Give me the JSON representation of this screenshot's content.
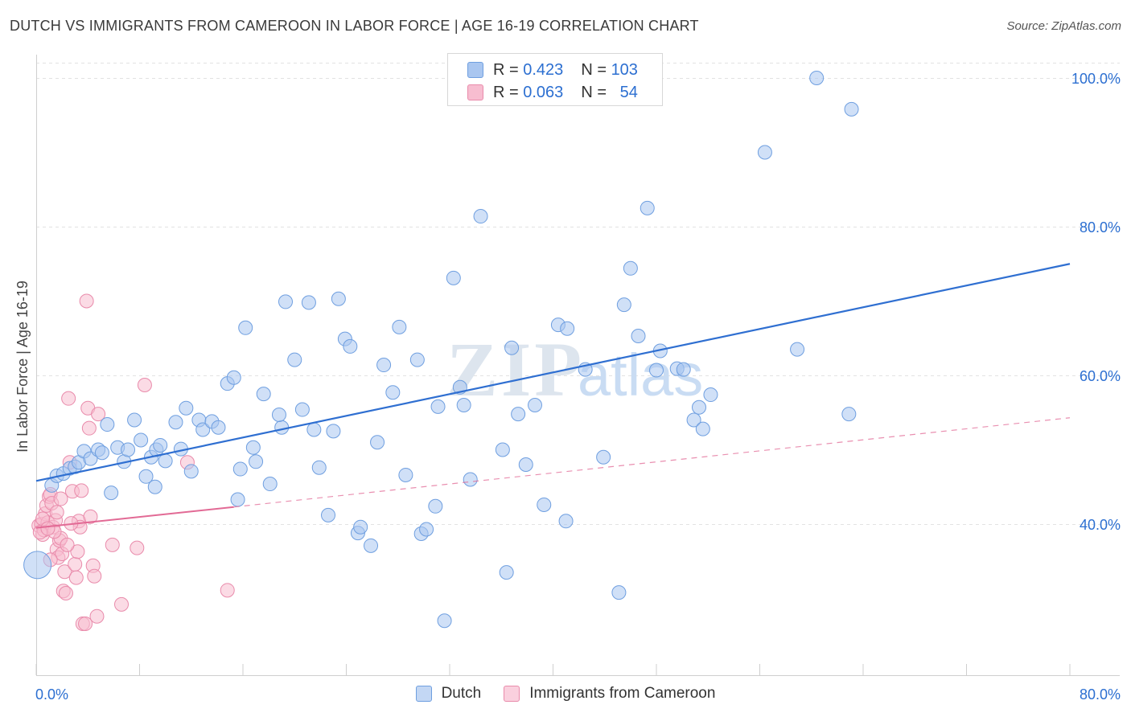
{
  "title": "DUTCH VS IMMIGRANTS FROM CAMEROON IN LABOR FORCE | AGE 16-19 CORRELATION CHART",
  "source": "Source: ZipAtlas.com",
  "watermark": {
    "zip": "ZIP",
    "atlas": "atlas"
  },
  "legend": {
    "r_label": "R =",
    "n_label": "N =",
    "dutch": {
      "r": "0.423",
      "n": "103",
      "color": "#a9c6f0",
      "border": "#6f9fe0"
    },
    "cameroon": {
      "r": "0.063",
      "n": "54",
      "color": "#f7bdd0",
      "border": "#e98bab"
    }
  },
  "bottom_legend": {
    "dutch_label": "Dutch",
    "cameroon_label": "Immigrants from Cameroon"
  },
  "chart_data": {
    "type": "scatter",
    "title": "DUTCH VS IMMIGRANTS FROM CAMEROON IN LABOR FORCE | AGE 16-19 CORRELATION CHART",
    "xlabel": "",
    "ylabel": "In Labor Force | Age 16-19",
    "xlim": [
      0,
      80
    ],
    "ylim": [
      20,
      102
    ],
    "x_tick_labels": [
      "0.0%",
      "80.0%"
    ],
    "y_tick_values": [
      40,
      60,
      80,
      100
    ],
    "y_tick_labels": [
      "40.0%",
      "60.0%",
      "80.0%",
      "100.0%"
    ],
    "grid": true,
    "series": [
      {
        "name": "Dutch",
        "color": "#a9c6f0",
        "edge": "#6f9fe0",
        "trend": {
          "x": [
            0,
            80
          ],
          "y": [
            45.8,
            75.0
          ],
          "style": "solid",
          "color": "#2f6fd1"
        },
        "points": [
          [
            0.1,
            34.5
          ],
          [
            1.2,
            45.2
          ],
          [
            1.6,
            46.5
          ],
          [
            2.1,
            46.8
          ],
          [
            2.6,
            47.5
          ],
          [
            3.0,
            47.7
          ],
          [
            3.3,
            48.3
          ],
          [
            3.7,
            49.8
          ],
          [
            4.2,
            48.8
          ],
          [
            4.8,
            50.0
          ],
          [
            5.1,
            49.6
          ],
          [
            5.5,
            53.4
          ],
          [
            5.8,
            44.2
          ],
          [
            6.3,
            50.3
          ],
          [
            6.8,
            48.4
          ],
          [
            7.1,
            50.0
          ],
          [
            7.6,
            54.0
          ],
          [
            8.1,
            51.3
          ],
          [
            8.5,
            46.4
          ],
          [
            8.9,
            49.0
          ],
          [
            9.3,
            50.0
          ],
          [
            9.6,
            50.6
          ],
          [
            10.0,
            48.5
          ],
          [
            10.8,
            53.7
          ],
          [
            11.2,
            50.1
          ],
          [
            11.6,
            55.6
          ],
          [
            12.0,
            47.1
          ],
          [
            12.6,
            54.0
          ],
          [
            12.9,
            52.7
          ],
          [
            13.6,
            53.8
          ],
          [
            14.1,
            53.0
          ],
          [
            14.8,
            58.9
          ],
          [
            15.3,
            59.7
          ],
          [
            15.8,
            47.4
          ],
          [
            16.2,
            66.4
          ],
          [
            16.8,
            50.3
          ],
          [
            17.0,
            48.4
          ],
          [
            17.6,
            57.5
          ],
          [
            18.1,
            45.4
          ],
          [
            19.0,
            53.0
          ],
          [
            19.3,
            69.9
          ],
          [
            20.0,
            62.1
          ],
          [
            20.6,
            55.4
          ],
          [
            21.1,
            69.8
          ],
          [
            21.5,
            52.7
          ],
          [
            21.9,
            47.6
          ],
          [
            22.6,
            41.2
          ],
          [
            23.0,
            52.5
          ],
          [
            23.4,
            70.3
          ],
          [
            23.9,
            64.9
          ],
          [
            24.3,
            63.9
          ],
          [
            24.9,
            38.8
          ],
          [
            25.1,
            39.6
          ],
          [
            25.9,
            37.1
          ],
          [
            26.4,
            51.0
          ],
          [
            26.9,
            61.4
          ],
          [
            27.6,
            57.7
          ],
          [
            28.1,
            66.5
          ],
          [
            28.6,
            46.6
          ],
          [
            29.5,
            62.1
          ],
          [
            29.8,
            38.7
          ],
          [
            30.2,
            39.3
          ],
          [
            31.1,
            55.8
          ],
          [
            31.6,
            27.0
          ],
          [
            32.3,
            73.1
          ],
          [
            32.8,
            58.4
          ],
          [
            33.1,
            56.0
          ],
          [
            33.6,
            46.0
          ],
          [
            34.4,
            81.4
          ],
          [
            36.1,
            50.0
          ],
          [
            36.4,
            33.5
          ],
          [
            36.8,
            63.7
          ],
          [
            37.3,
            54.8
          ],
          [
            37.9,
            48.0
          ],
          [
            38.6,
            56.0
          ],
          [
            39.3,
            42.6
          ],
          [
            40.4,
            66.8
          ],
          [
            41.0,
            40.4
          ],
          [
            41.1,
            66.3
          ],
          [
            42.5,
            60.8
          ],
          [
            43.9,
            49.0
          ],
          [
            45.1,
            30.8
          ],
          [
            45.5,
            69.5
          ],
          [
            46.0,
            74.4
          ],
          [
            47.3,
            82.5
          ],
          [
            48.3,
            63.3
          ],
          [
            49.6,
            60.9
          ],
          [
            50.1,
            60.8
          ],
          [
            50.9,
            54.0
          ],
          [
            51.3,
            55.7
          ],
          [
            51.6,
            52.8
          ],
          [
            52.2,
            57.4
          ],
          [
            56.4,
            90.0
          ],
          [
            58.9,
            63.5
          ],
          [
            60.4,
            100.0
          ],
          [
            62.9,
            54.8
          ],
          [
            63.1,
            95.8
          ],
          [
            48.0,
            60.7
          ],
          [
            46.6,
            65.3
          ],
          [
            30.9,
            42.4
          ],
          [
            15.6,
            43.3
          ],
          [
            9.2,
            45.0
          ],
          [
            18.8,
            54.7
          ]
        ]
      },
      {
        "name": "Immigrants from Cameroon",
        "color": "#f7bdd0",
        "edge": "#e98bab",
        "trend": {
          "x": [
            0,
            15.3,
            80
          ],
          "y": [
            39.5,
            42.3,
            54.3
          ],
          "style": "solid-then-dashed",
          "color": "#e26a95"
        },
        "points": [
          [
            0.2,
            39.8
          ],
          [
            0.4,
            40.0
          ],
          [
            0.5,
            38.6
          ],
          [
            0.6,
            39.2
          ],
          [
            0.7,
            41.4
          ],
          [
            0.8,
            42.5
          ],
          [
            0.9,
            40.2
          ],
          [
            1.0,
            43.7
          ],
          [
            1.1,
            44.0
          ],
          [
            1.2,
            42.8
          ],
          [
            1.3,
            39.6
          ],
          [
            1.5,
            40.5
          ],
          [
            1.6,
            36.6
          ],
          [
            1.7,
            35.5
          ],
          [
            1.8,
            37.8
          ],
          [
            1.9,
            38.1
          ],
          [
            2.0,
            36.0
          ],
          [
            2.1,
            31.0
          ],
          [
            2.2,
            33.6
          ],
          [
            2.3,
            30.7
          ],
          [
            2.5,
            56.9
          ],
          [
            2.6,
            48.3
          ],
          [
            2.8,
            44.4
          ],
          [
            3.0,
            34.6
          ],
          [
            3.1,
            32.8
          ],
          [
            3.2,
            36.3
          ],
          [
            3.3,
            40.4
          ],
          [
            3.4,
            39.6
          ],
          [
            3.5,
            44.5
          ],
          [
            3.6,
            26.6
          ],
          [
            3.8,
            26.6
          ],
          [
            3.9,
            70.0
          ],
          [
            4.0,
            55.6
          ],
          [
            4.1,
            52.9
          ],
          [
            4.2,
            41.0
          ],
          [
            4.4,
            34.4
          ],
          [
            4.5,
            33.0
          ],
          [
            4.7,
            27.6
          ],
          [
            4.8,
            54.8
          ],
          [
            5.9,
            37.2
          ],
          [
            6.6,
            29.2
          ],
          [
            7.8,
            36.8
          ],
          [
            8.4,
            58.7
          ],
          [
            11.7,
            48.3
          ],
          [
            14.8,
            31.1
          ],
          [
            0.3,
            38.9
          ],
          [
            0.5,
            40.7
          ],
          [
            1.4,
            39.0
          ],
          [
            1.9,
            43.4
          ],
          [
            2.4,
            37.2
          ],
          [
            1.1,
            35.2
          ],
          [
            0.9,
            39.4
          ],
          [
            2.7,
            40.1
          ],
          [
            1.6,
            41.6
          ]
        ]
      }
    ]
  }
}
